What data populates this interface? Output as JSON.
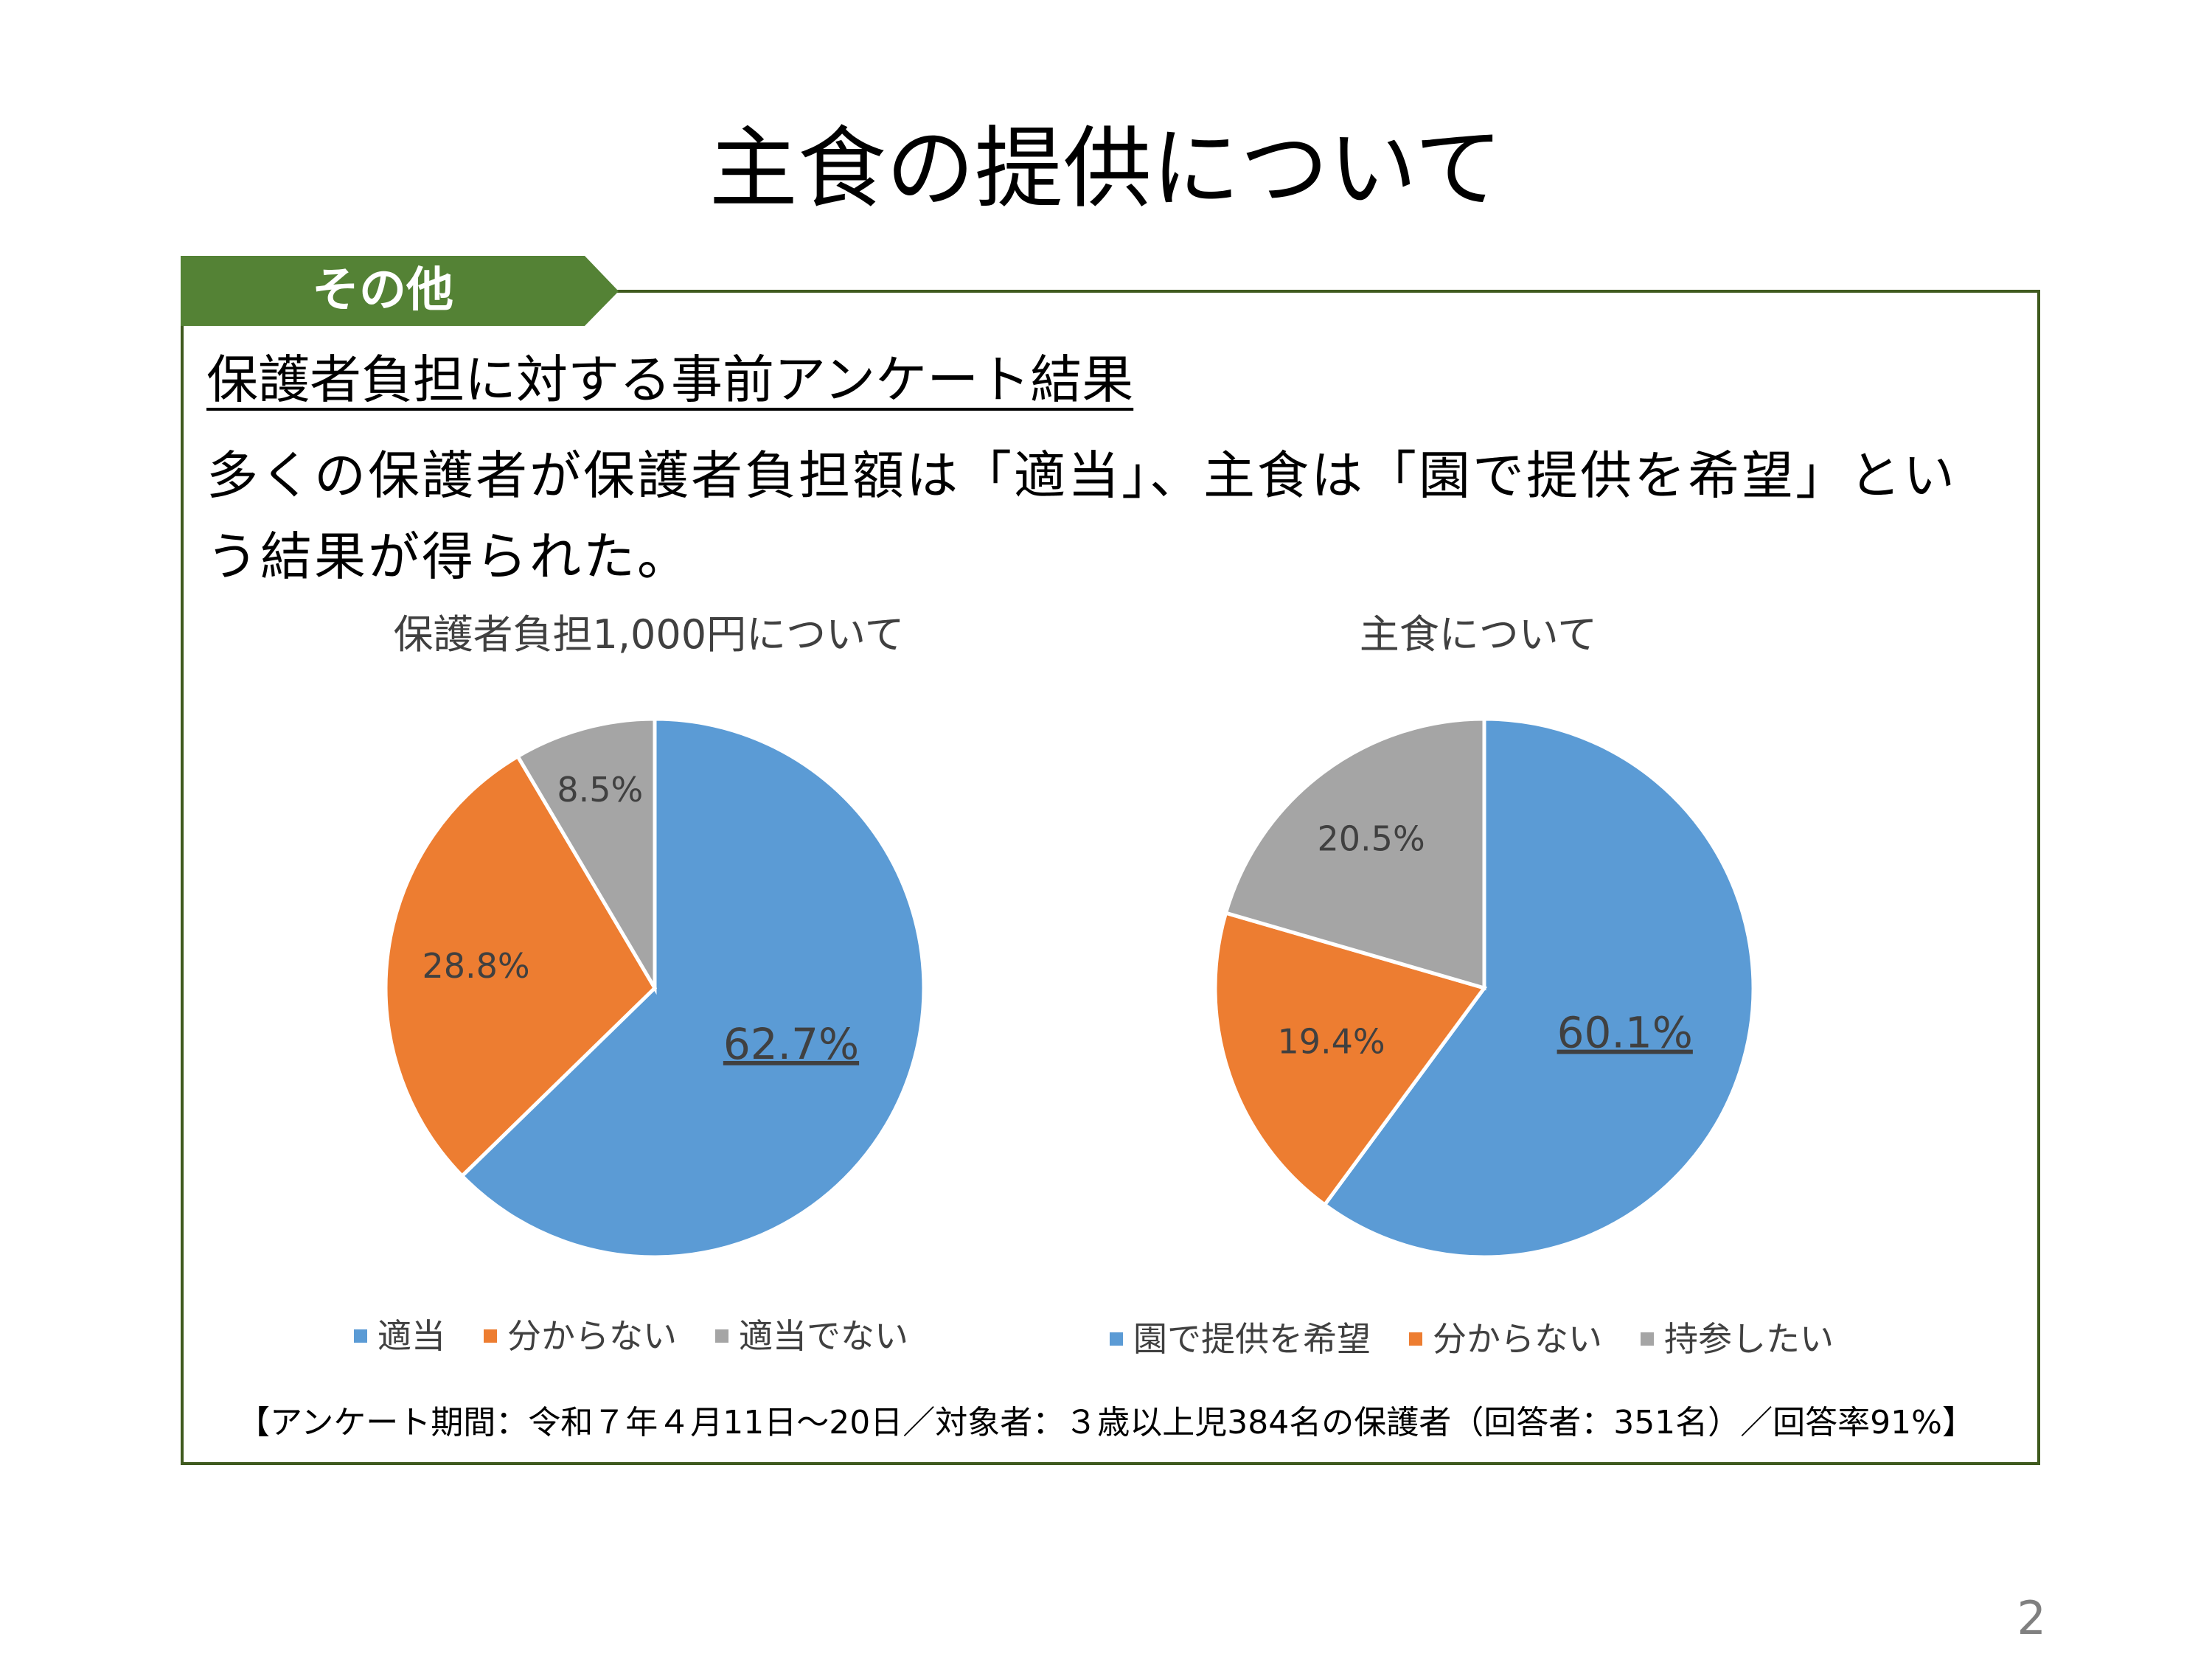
{
  "page": {
    "title": "主食の提供について",
    "tag": "その他",
    "subheading": "保護者負担に対する事前アンケート結果",
    "body": "多くの保護者が保護者負担額は「適当」、主食は「園で提供を希望」という結果が得られた。",
    "footnote": "【アンケート期間：令和７年４月11日～20日／対象者：３歳以上児384名の保護者（回答者：351名）／回答率91%】",
    "page_number": "2"
  },
  "chart_data": [
    {
      "type": "pie",
      "title": "保護者負担1,000円について",
      "categories": [
        "適当",
        "分からない",
        "適当でない"
      ],
      "values": [
        62.7,
        28.8,
        8.5
      ],
      "labels": [
        "62.7%",
        "28.8%",
        "8.5%"
      ],
      "colors": [
        "#5B9BD5",
        "#ED7D31",
        "#A5A5A5"
      ],
      "legend": "bottom"
    },
    {
      "type": "pie",
      "title": "主食について",
      "categories": [
        "園で提供を希望",
        "分からない",
        "持参したい"
      ],
      "values": [
        60.1,
        19.4,
        20.5
      ],
      "labels": [
        "60.1%",
        "19.4%",
        "20.5%"
      ],
      "colors": [
        "#5B9BD5",
        "#ED7D31",
        "#A5A5A5"
      ],
      "legend": "bottom"
    }
  ]
}
